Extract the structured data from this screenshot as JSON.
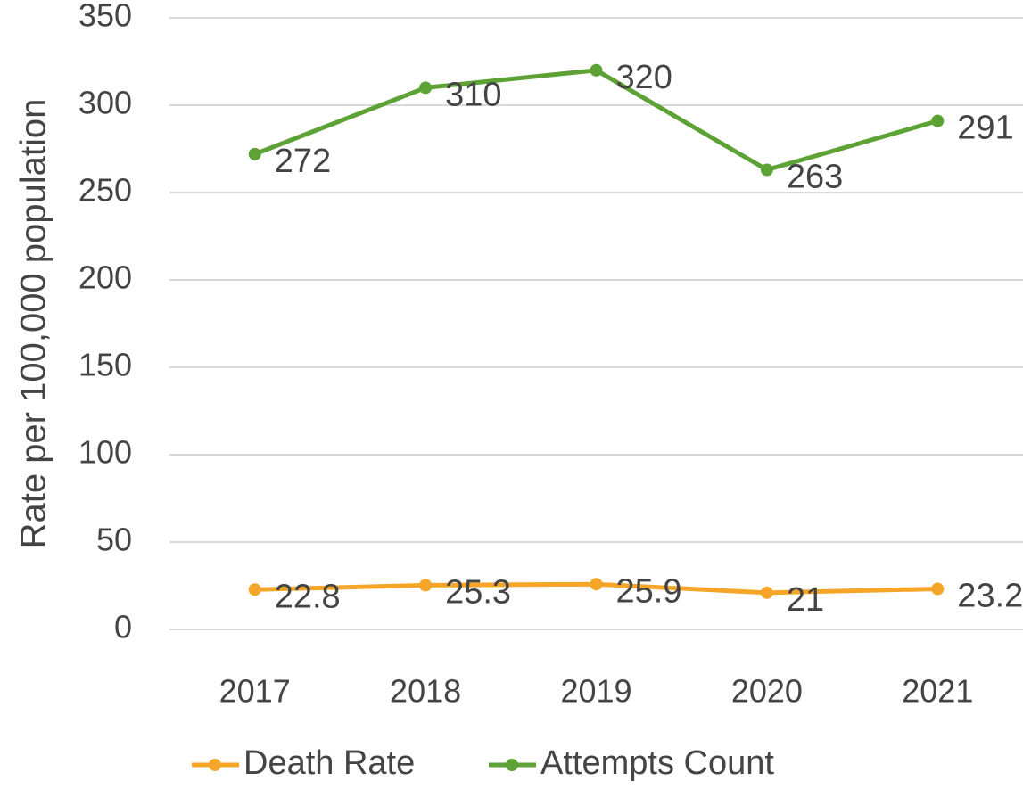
{
  "chart_data": {
    "type": "line",
    "y_axis_label": "Rate per 100,000 population",
    "categories": [
      "2017",
      "2018",
      "2019",
      "2020",
      "2021"
    ],
    "series": [
      {
        "name": "Death Rate",
        "color": "#f5a628",
        "values": [
          22.8,
          25.3,
          25.9,
          21,
          23.2
        ]
      },
      {
        "name": "Attempts Count",
        "color": "#5da235",
        "values": [
          272,
          310,
          320,
          263,
          291
        ]
      }
    ],
    "ylim": [
      0,
      350
    ],
    "yticks": [
      0,
      50,
      100,
      150,
      200,
      250,
      300,
      350
    ],
    "grid": true,
    "legend": "bottom"
  }
}
